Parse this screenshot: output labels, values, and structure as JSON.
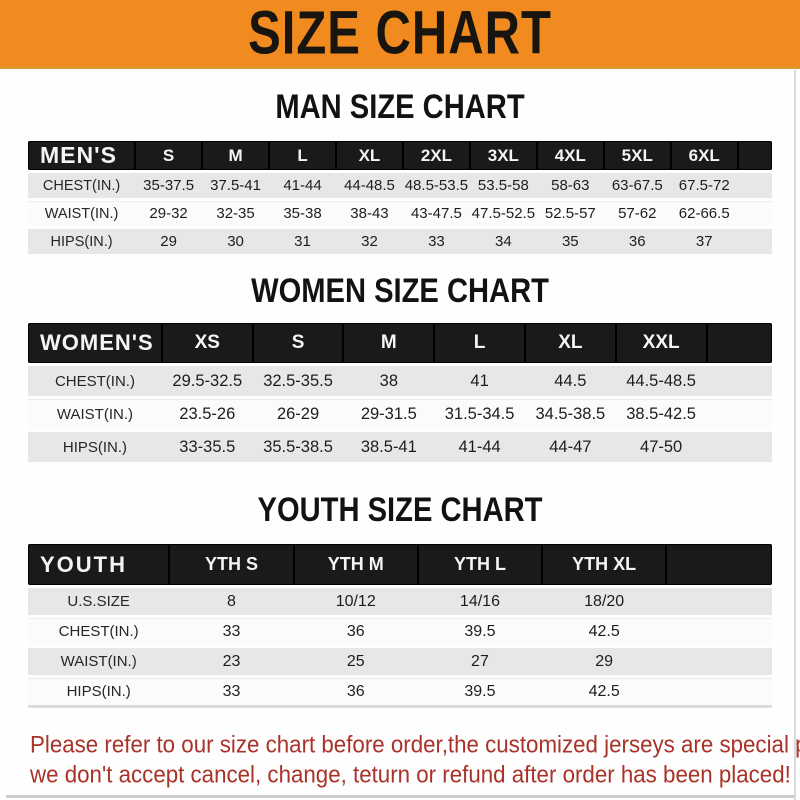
{
  "banner": {
    "title": "SIZE CHART",
    "bg_color": "#F18A1F",
    "text_color": "#181410"
  },
  "sections": [
    {
      "id": "men",
      "heading": "MAN SIZE CHART",
      "corner_label": "MEN'S",
      "columns": [
        "S",
        "M",
        "L",
        "XL",
        "2XL",
        "3XL",
        "4XL",
        "5XL",
        "6XL"
      ],
      "rows": [
        {
          "label": "CHEST(IN.)",
          "values": [
            "35-37.5",
            "37.5-41",
            "41-44",
            "44-48.5",
            "48.5-53.5",
            "53.5-58",
            "58-63",
            "63-67.5",
            "67.5-72"
          ]
        },
        {
          "label": "WAIST(IN.)",
          "values": [
            "29-32",
            "32-35",
            "35-38",
            "38-43",
            "43-47.5",
            "47.5-52.5",
            "52.5-57",
            "57-62",
            "62-66.5"
          ]
        },
        {
          "label": "HIPS(IN.)",
          "values": [
            "29",
            "30",
            "31",
            "32",
            "33",
            "34",
            "35",
            "36",
            "37"
          ]
        }
      ]
    },
    {
      "id": "women",
      "heading": "WOMEN SIZE CHART",
      "corner_label": "WOMEN'S",
      "columns": [
        "XS",
        "S",
        "M",
        "L",
        "XL",
        "XXL"
      ],
      "rows": [
        {
          "label": "CHEST(IN.)",
          "values": [
            "29.5-32.5",
            "32.5-35.5",
            "38",
            "41",
            "44.5",
            "44.5-48.5"
          ]
        },
        {
          "label": "WAIST(IN.)",
          "values": [
            "23.5-26",
            "26-29",
            "29-31.5",
            "31.5-34.5",
            "34.5-38.5",
            "38.5-42.5"
          ]
        },
        {
          "label": "HIPS(IN.)",
          "values": [
            "33-35.5",
            "35.5-38.5",
            "38.5-41",
            "41-44",
            "44-47",
            "47-50"
          ]
        }
      ]
    },
    {
      "id": "youth",
      "heading": "YOUTH SIZE CHART",
      "corner_label": "YOUTH",
      "columns": [
        "YTH S",
        "YTH M",
        "YTH L",
        "YTH XL"
      ],
      "rows": [
        {
          "label": "U.S.SIZE",
          "values": [
            "8",
            "10/12",
            "14/16",
            "18/20"
          ]
        },
        {
          "label": "CHEST(IN.)",
          "values": [
            "33",
            "36",
            "39.5",
            "42.5"
          ]
        },
        {
          "label": "WAIST(IN.)",
          "values": [
            "23",
            "25",
            "27",
            "29"
          ]
        },
        {
          "label": "HIPS(IN.)",
          "values": [
            "33",
            "36",
            "39.5",
            "42.5"
          ]
        }
      ]
    }
  ],
  "footer": {
    "line1": "Please refer to our size chart before order,the customized jerseys are special products,",
    "line2": "we don't accept cancel, change, teturn or refund after order has been placed!",
    "text_color": "#A93229"
  }
}
